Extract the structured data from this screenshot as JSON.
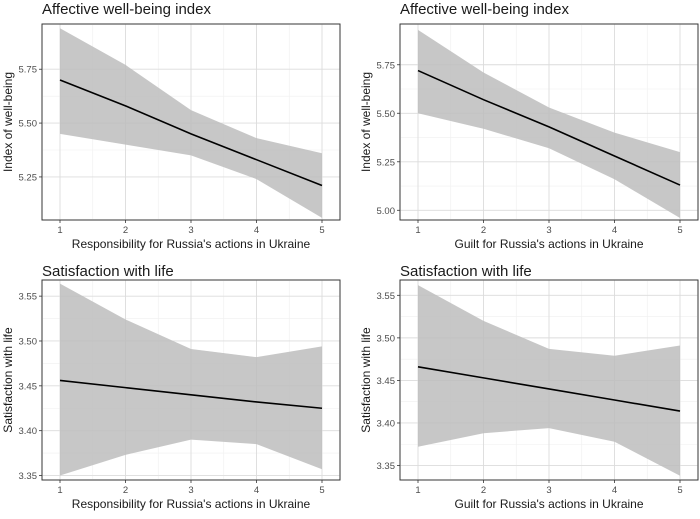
{
  "chart_data": [
    {
      "type": "line",
      "title": "Affective well-being index",
      "xlabel": "Responsibility for Russia's actions in Ukraine",
      "ylabel": "Index of well-being",
      "x": [
        1,
        2,
        3,
        4,
        5
      ],
      "xlim": [
        1,
        5
      ],
      "ylim": [
        5.05,
        5.96
      ],
      "yticks": [
        5.25,
        5.5,
        5.75
      ],
      "ytick_labels": [
        "5.25",
        "5.50",
        "5.75"
      ],
      "grid": true,
      "series": [
        {
          "fit": [
            5.7,
            5.58,
            5.45,
            5.33,
            5.21
          ],
          "ci_lower": [
            5.45,
            5.4,
            5.35,
            5.24,
            5.06
          ],
          "ci_upper": [
            5.94,
            5.77,
            5.56,
            5.43,
            5.36
          ]
        }
      ]
    },
    {
      "type": "line",
      "title": "Affective well-being index",
      "xlabel": "Guilt for Russia's actions in Ukraine",
      "ylabel": "Index of well-being",
      "x": [
        1,
        2,
        3,
        4,
        5
      ],
      "xlim": [
        1,
        5
      ],
      "ylim": [
        4.95,
        5.96
      ],
      "yticks": [
        5.0,
        5.25,
        5.5,
        5.75
      ],
      "ytick_labels": [
        "5.00",
        "5.25",
        "5.50",
        "5.75"
      ],
      "grid": true,
      "series": [
        {
          "fit": [
            5.72,
            5.57,
            5.43,
            5.28,
            5.13
          ],
          "ci_lower": [
            5.5,
            5.42,
            5.32,
            5.16,
            4.96
          ],
          "ci_upper": [
            5.93,
            5.71,
            5.53,
            5.4,
            5.3
          ]
        }
      ]
    },
    {
      "type": "line",
      "title": "Satisfaction with life",
      "xlabel": "Responsibility for Russia's actions in Ukraine",
      "ylabel": "Satisfaction with life",
      "x": [
        1,
        2,
        3,
        4,
        5
      ],
      "xlim": [
        1,
        5
      ],
      "ylim": [
        3.345,
        3.568
      ],
      "yticks": [
        3.35,
        3.4,
        3.45,
        3.5,
        3.55
      ],
      "ytick_labels": [
        "3.35",
        "3.40",
        "3.45",
        "3.50",
        "3.55"
      ],
      "grid": true,
      "series": [
        {
          "fit": [
            3.456,
            3.448,
            3.44,
            3.432,
            3.425
          ],
          "ci_lower": [
            3.35,
            3.373,
            3.39,
            3.385,
            3.357
          ],
          "ci_upper": [
            3.564,
            3.524,
            3.491,
            3.482,
            3.494
          ]
        }
      ]
    },
    {
      "type": "line",
      "title": "Satisfaction with life",
      "xlabel": "Guilt for Russia's actions in Ukraine",
      "ylabel": "Satisfaction with life",
      "x": [
        1,
        2,
        3,
        4,
        5
      ],
      "xlim": [
        1,
        5
      ],
      "ylim": [
        3.333,
        3.568
      ],
      "yticks": [
        3.35,
        3.4,
        3.45,
        3.5,
        3.55
      ],
      "ytick_labels": [
        "3.35",
        "3.40",
        "3.45",
        "3.50",
        "3.55"
      ],
      "grid": true,
      "series": [
        {
          "fit": [
            3.466,
            3.453,
            3.44,
            3.427,
            3.414
          ],
          "ci_lower": [
            3.372,
            3.388,
            3.394,
            3.378,
            3.338
          ],
          "ci_upper": [
            3.562,
            3.52,
            3.487,
            3.479,
            3.491
          ]
        }
      ]
    }
  ]
}
